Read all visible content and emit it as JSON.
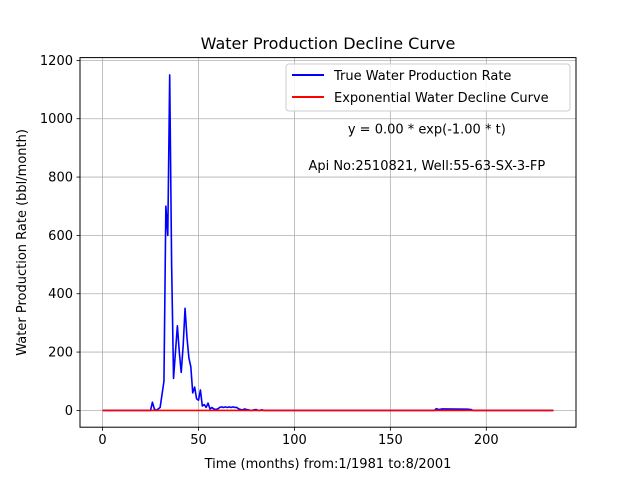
{
  "chart_data": {
    "type": "line",
    "title": "Water Production Decline Curve",
    "xlabel": "Time (months) from:1/1981 to:8/2001",
    "ylabel": "Water Production Rate (bbl/month)",
    "xlim": [
      -11.75,
      246.75
    ],
    "ylim": [
      -57.6,
      1209.6
    ],
    "xticks": [
      0,
      50,
      100,
      150,
      200
    ],
    "yticks": [
      0,
      200,
      400,
      600,
      800,
      1000,
      1200
    ],
    "grid": true,
    "legend_position": "top-right",
    "annotations": [
      {
        "text": "y = 0.00 * exp(-1.00 * t)",
        "x": 169,
        "y": 965
      },
      {
        "text": "Api No:2510821, Well:55-63-SX-3-FP",
        "x": 169,
        "y": 840
      }
    ],
    "series": [
      {
        "name": "True Water Production Rate",
        "color": "#0000ff",
        "x": [
          0,
          1,
          25,
          26,
          27,
          28,
          30,
          32,
          33,
          34,
          35,
          36,
          37,
          38,
          39,
          40,
          41,
          42,
          43,
          44,
          45,
          46,
          47,
          48,
          49,
          50,
          51,
          52,
          53,
          54,
          55,
          56,
          57,
          58,
          59,
          60,
          61,
          62,
          63,
          64,
          65,
          66,
          67,
          68,
          69,
          70,
          71,
          72,
          73,
          74,
          75,
          76,
          77,
          78,
          79,
          80,
          81,
          82,
          83,
          84,
          85,
          100,
          150,
          173,
          174,
          175,
          176,
          177,
          190,
          192,
          193,
          194,
          200,
          230,
          235
        ],
        "y": [
          0,
          0,
          0,
          28,
          5,
          0,
          10,
          100,
          700,
          600,
          1150,
          500,
          110,
          200,
          290,
          200,
          130,
          220,
          350,
          250,
          180,
          150,
          60,
          80,
          40,
          35,
          70,
          15,
          20,
          10,
          25,
          5,
          10,
          5,
          3,
          5,
          10,
          12,
          10,
          12,
          10,
          12,
          10,
          12,
          10,
          10,
          5,
          3,
          2,
          5,
          3,
          2,
          0,
          0,
          2,
          3,
          0,
          0,
          2,
          0,
          0,
          0,
          0,
          0,
          6,
          3,
          4,
          5,
          4,
          3,
          0,
          0,
          0,
          0,
          0
        ]
      },
      {
        "name": "Exponential Water Decline Curve",
        "color": "#ff0000",
        "x": [
          0,
          235
        ],
        "y": [
          0,
          0
        ]
      }
    ]
  }
}
